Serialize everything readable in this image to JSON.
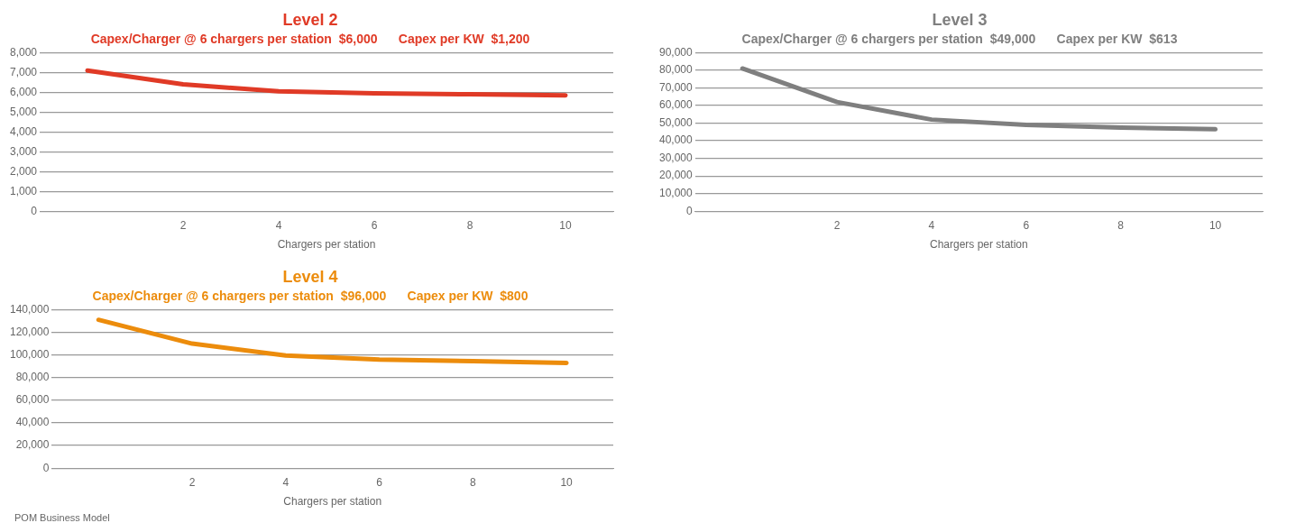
{
  "chart_data": [
    {
      "type": "line",
      "title": "Level 2",
      "subtitle": "Capex/Charger @ 6 chargers per station  $6,000      Capex per KW  $1,200",
      "xlabel": "Chargers per station",
      "x": [
        0,
        2,
        4,
        6,
        8,
        10
      ],
      "series": [
        {
          "color": "#e03a26",
          "values": [
            7100,
            6400,
            6050,
            5950,
            5900,
            5850
          ]
        }
      ],
      "xlim": [
        -1,
        11
      ],
      "xticks": [
        2,
        4,
        6,
        8,
        10
      ],
      "ylim": [
        0,
        8000
      ],
      "yticks": [
        {
          "value": 0,
          "label": "0"
        },
        {
          "value": 1000,
          "label": "1,000"
        },
        {
          "value": 2000,
          "label": "2,000"
        },
        {
          "value": 3000,
          "label": "3,000"
        },
        {
          "value": 4000,
          "label": "4,000"
        },
        {
          "value": 5000,
          "label": "5,000"
        },
        {
          "value": 6000,
          "label": "6,000"
        },
        {
          "value": 7000,
          "label": "7,000"
        },
        {
          "value": 8000,
          "label": "8,000"
        }
      ],
      "grid": "y",
      "legend": false,
      "marker": "none",
      "line_style": "solid"
    },
    {
      "type": "line",
      "title": "Level 3",
      "subtitle": "Capex/Charger @ 6 chargers per station  $49,000      Capex per KW  $613",
      "xlabel": "Chargers per station",
      "x": [
        0,
        2,
        4,
        6,
        8,
        10
      ],
      "series": [
        {
          "color": "#7f7f7f",
          "values": [
            81000,
            62000,
            52000,
            49000,
            47500,
            46500
          ]
        }
      ],
      "xlim": [
        -1,
        11
      ],
      "xticks": [
        2,
        4,
        6,
        8,
        10
      ],
      "ylim": [
        0,
        90000
      ],
      "yticks": [
        {
          "value": 0,
          "label": "0"
        },
        {
          "value": 10000,
          "label": "10,000"
        },
        {
          "value": 20000,
          "label": "20,000"
        },
        {
          "value": 30000,
          "label": "30,000"
        },
        {
          "value": 40000,
          "label": "40,000"
        },
        {
          "value": 50000,
          "label": "50,000"
        },
        {
          "value": 60000,
          "label": "60,000"
        },
        {
          "value": 70000,
          "label": "70,000"
        },
        {
          "value": 80000,
          "label": "80,000"
        },
        {
          "value": 90000,
          "label": "90,000"
        }
      ],
      "grid": "y",
      "legend": false,
      "marker": "none",
      "line_style": "solid"
    },
    {
      "type": "line",
      "title": "Level 4",
      "subtitle": "Capex/Charger @ 6 chargers per station  $96,000      Capex per KW  $800",
      "xlabel": "Chargers per station",
      "x": [
        0,
        2,
        4,
        6,
        8,
        10
      ],
      "series": [
        {
          "color": "#ec8c0c",
          "values": [
            131000,
            110000,
            99500,
            96000,
            94500,
            93000
          ]
        }
      ],
      "xlim": [
        -1,
        11
      ],
      "xticks": [
        2,
        4,
        6,
        8,
        10
      ],
      "ylim": [
        0,
        140000
      ],
      "yticks": [
        {
          "value": 0,
          "label": "0"
        },
        {
          "value": 20000,
          "label": "20,000"
        },
        {
          "value": 40000,
          "label": "40,000"
        },
        {
          "value": 60000,
          "label": "60,000"
        },
        {
          "value": 80000,
          "label": "80,000"
        },
        {
          "value": 100000,
          "label": "100,000"
        },
        {
          "value": 120000,
          "label": "120,000"
        },
        {
          "value": 140000,
          "label": "140,000"
        }
      ],
      "grid": "y",
      "legend": false,
      "marker": "none",
      "line_style": "solid",
      "annotations": [
        "POM Business Model"
      ]
    }
  ]
}
